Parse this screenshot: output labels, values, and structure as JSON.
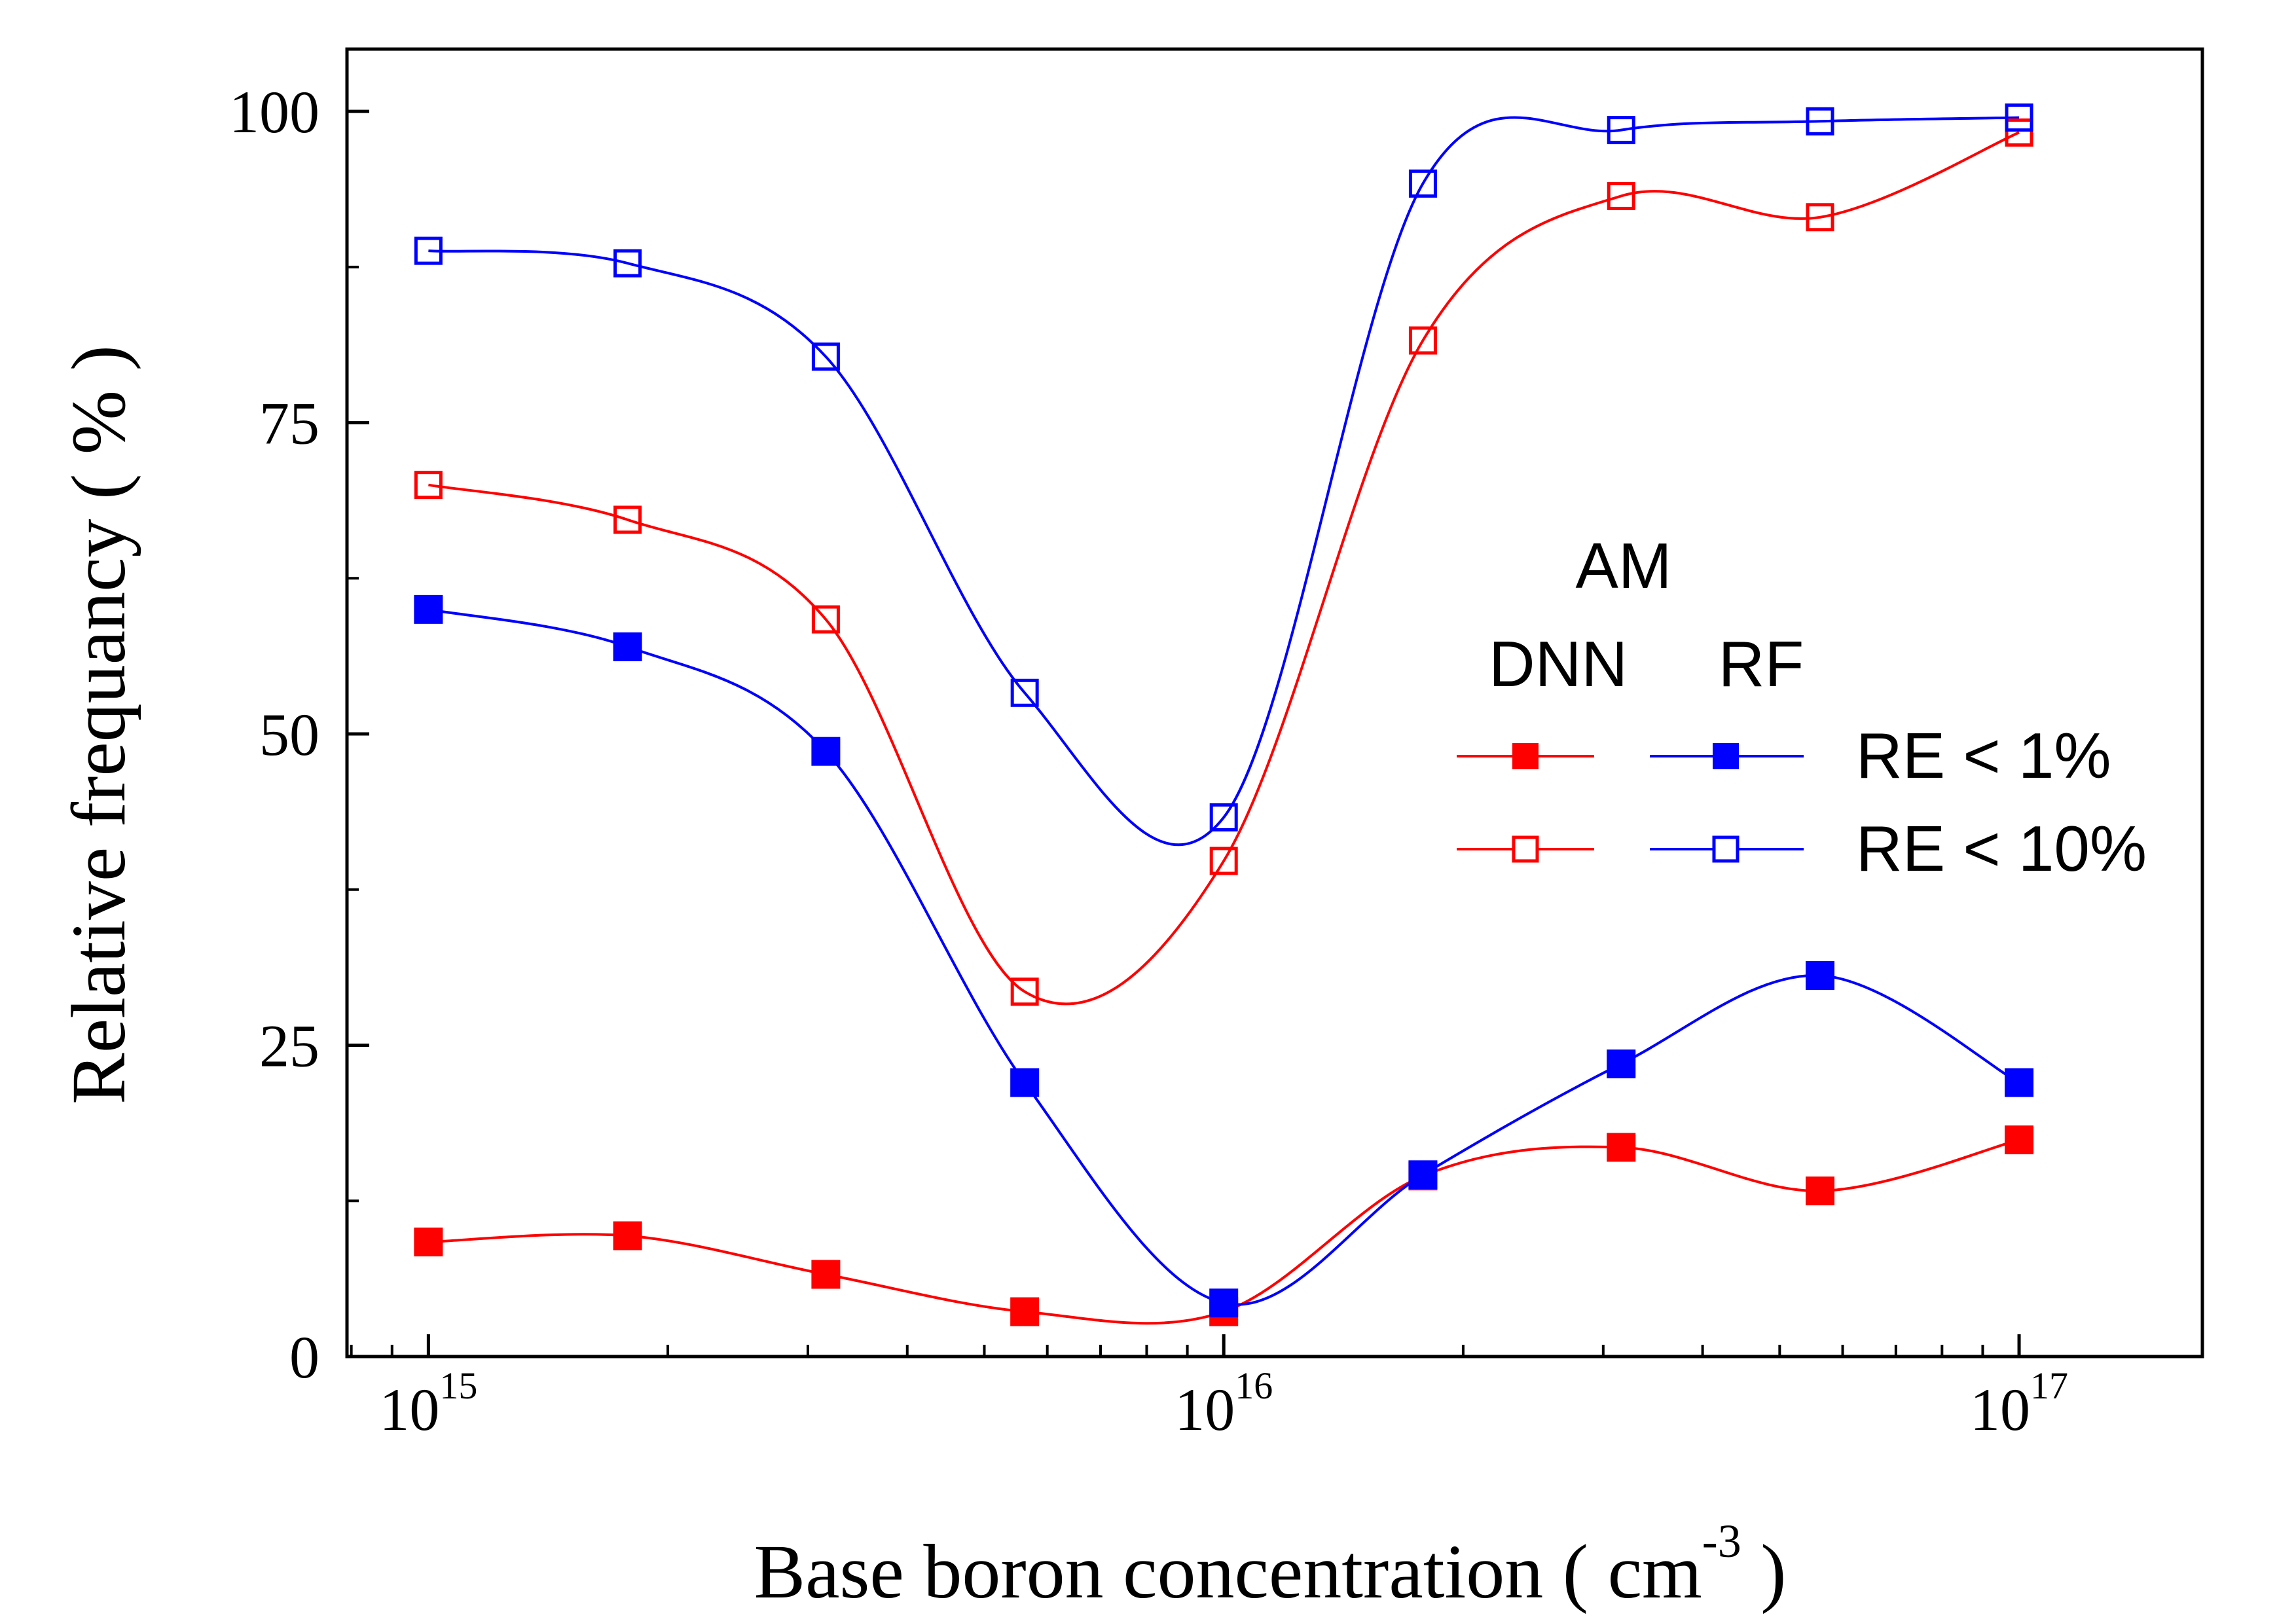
{
  "chart_data": {
    "type": "scatter",
    "xlabel": "Base boron concentration  ( cm",
    "xlabel_sup": "-3",
    "xlabel_end": " )",
    "ylabel": "Relative frequancy ( % )",
    "x_scale": "log",
    "xlim": [
      790000000000000.0,
      1.7e+17
    ],
    "ylim": [
      0,
      105
    ],
    "y_ticks": [
      0,
      25,
      50,
      75,
      100
    ],
    "y_tick_labels": [
      "0",
      "25",
      "50",
      "75",
      "100"
    ],
    "x_ticks": [
      1000000000000000.0,
      1e+16,
      1e+17
    ],
    "x_tick_labels": [
      {
        "base": "10",
        "exp": "15"
      },
      {
        "base": "10",
        "exp": "16"
      },
      {
        "base": "10",
        "exp": "17"
      }
    ],
    "grid": false,
    "x": [
      1000000000000000.0,
      1780000000000000.0,
      3160000000000000.0,
      5620000000000000.0,
      1e+16,
      1.78e+16,
      3.16e+16,
      5.62e+16,
      1e+17
    ],
    "series": [
      {
        "model": "DNN",
        "criterion": "RE < 1%",
        "marker": "filled",
        "color": "#ff0000",
        "values": [
          9.2,
          9.7,
          6.6,
          3.6,
          3.6,
          14.5,
          16.8,
          13.3,
          17.4
        ]
      },
      {
        "model": "RF",
        "criterion": "RE < 1%",
        "marker": "filled",
        "color": "#0000ff",
        "values": [
          60.0,
          57.0,
          48.6,
          22.0,
          4.3,
          14.6,
          23.5,
          30.6,
          22.0
        ]
      },
      {
        "model": "DNN",
        "criterion": "RE < 10%",
        "marker": "open",
        "color": "#ff0000",
        "values": [
          70.0,
          67.2,
          59.2,
          29.3,
          39.8,
          81.6,
          93.2,
          91.5,
          98.3
        ]
      },
      {
        "model": "RF",
        "criterion": "RE < 10%",
        "marker": "open",
        "color": "#0000ff",
        "values": [
          88.8,
          87.8,
          80.3,
          53.3,
          43.3,
          94.2,
          98.5,
          99.2,
          99.5
        ]
      }
    ],
    "legend": {
      "placement": "right-center",
      "group_title": "AM",
      "column_headers": [
        "DNN",
        "RF"
      ],
      "rows": [
        "RE < 1%",
        "RE < 10%"
      ]
    }
  }
}
